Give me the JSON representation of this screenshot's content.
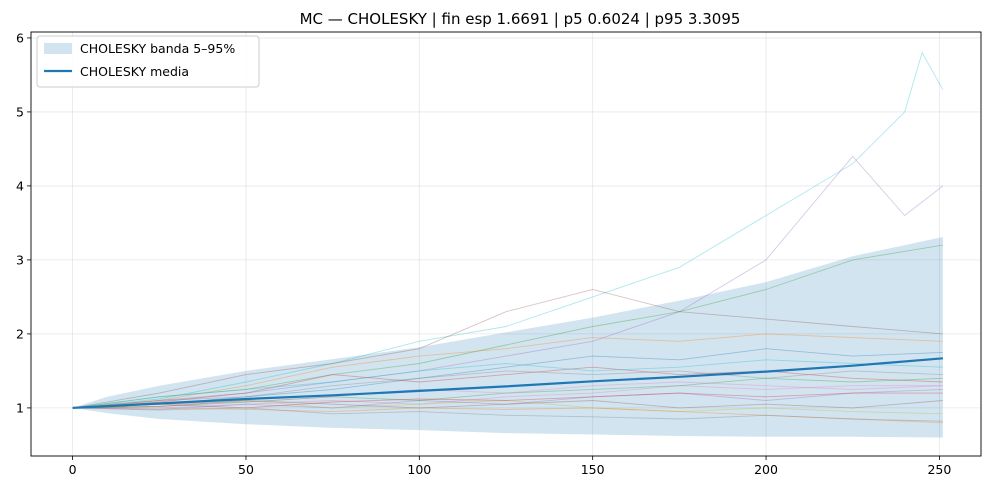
{
  "chart_data": {
    "type": "line",
    "title": "MC — CHOLESKY | fin esp 1.6691 | p5 0.6024 | p95 3.3095",
    "xlabel": "",
    "ylabel": "",
    "xlim": [
      -12,
      262
    ],
    "ylim": [
      0.35,
      6.08
    ],
    "xticks": [
      0,
      50,
      100,
      150,
      200,
      250
    ],
    "yticks": [
      1,
      2,
      3,
      4,
      5,
      6
    ],
    "grid": true,
    "legend_position": "top-left",
    "band": {
      "name": "CHOLESKY banda 5–95%",
      "color": "#1f77b4",
      "x": [
        0,
        10,
        25,
        50,
        75,
        100,
        125,
        150,
        175,
        200,
        225,
        251
      ],
      "low": [
        1.0,
        0.93,
        0.85,
        0.78,
        0.73,
        0.7,
        0.66,
        0.64,
        0.62,
        0.61,
        0.61,
        0.6
      ],
      "high": [
        1.0,
        1.15,
        1.3,
        1.5,
        1.66,
        1.82,
        2.02,
        2.22,
        2.45,
        2.7,
        3.05,
        3.31
      ]
    },
    "mean": {
      "name": "CHOLESKY media",
      "color": "#1f77b4",
      "x": [
        0,
        25,
        50,
        75,
        100,
        125,
        150,
        175,
        200,
        225,
        251
      ],
      "y": [
        1.0,
        1.06,
        1.12,
        1.17,
        1.23,
        1.29,
        1.36,
        1.42,
        1.49,
        1.57,
        1.67
      ]
    },
    "paths": [
      {
        "color": "#17becf",
        "x": [
          0,
          25,
          50,
          75,
          100,
          125,
          150,
          175,
          200,
          225,
          240,
          245,
          251
        ],
        "y": [
          1.0,
          1.12,
          1.35,
          1.6,
          1.9,
          2.1,
          2.5,
          2.9,
          3.6,
          4.3,
          5.0,
          5.8,
          5.3
        ]
      },
      {
        "color": "#9467bd",
        "x": [
          0,
          25,
          50,
          75,
          100,
          125,
          150,
          175,
          200,
          225,
          240,
          251
        ],
        "y": [
          1.0,
          1.1,
          1.2,
          1.35,
          1.5,
          1.7,
          1.9,
          2.3,
          3.0,
          4.4,
          3.6,
          4.0
        ]
      },
      {
        "color": "#2ca02c",
        "x": [
          0,
          25,
          50,
          75,
          100,
          125,
          150,
          175,
          200,
          225,
          251
        ],
        "y": [
          1.0,
          1.15,
          1.25,
          1.45,
          1.6,
          1.85,
          2.1,
          2.3,
          2.6,
          3.0,
          3.2
        ]
      },
      {
        "color": "#8c564b",
        "x": [
          0,
          25,
          50,
          75,
          100,
          125,
          150,
          175,
          200,
          225,
          251
        ],
        "y": [
          1.0,
          1.2,
          1.45,
          1.6,
          1.8,
          2.3,
          2.6,
          2.3,
          2.2,
          2.1,
          2.0
        ]
      },
      {
        "color": "#ff7f0e",
        "x": [
          0,
          25,
          50,
          75,
          100,
          125,
          150,
          175,
          200,
          225,
          251
        ],
        "y": [
          1.0,
          1.1,
          1.3,
          1.55,
          1.7,
          1.8,
          1.95,
          1.9,
          2.0,
          1.95,
          1.9
        ]
      },
      {
        "color": "#1f77b4",
        "x": [
          0,
          25,
          50,
          75,
          100,
          125,
          150,
          175,
          200,
          225,
          251
        ],
        "y": [
          1.0,
          1.05,
          1.15,
          1.25,
          1.4,
          1.55,
          1.7,
          1.65,
          1.8,
          1.7,
          1.75
        ]
      },
      {
        "color": "#d62728",
        "x": [
          0,
          25,
          50,
          75,
          100,
          125,
          150,
          175,
          200,
          225,
          251
        ],
        "y": [
          1.0,
          1.08,
          1.2,
          1.45,
          1.35,
          1.45,
          1.55,
          1.45,
          1.5,
          1.4,
          1.35
        ]
      },
      {
        "color": "#e377c2",
        "x": [
          0,
          25,
          50,
          75,
          100,
          125,
          150,
          175,
          200,
          225,
          251
        ],
        "y": [
          1.0,
          1.0,
          1.05,
          1.1,
          1.05,
          1.15,
          1.2,
          1.3,
          1.25,
          1.3,
          1.3
        ]
      },
      {
        "color": "#7f7f7f",
        "x": [
          0,
          25,
          50,
          75,
          100,
          125,
          150,
          175,
          200,
          225,
          251
        ],
        "y": [
          1.0,
          1.1,
          1.15,
          1.3,
          1.4,
          1.5,
          1.45,
          1.5,
          1.4,
          1.5,
          1.45
        ]
      },
      {
        "color": "#bcbd22",
        "x": [
          0,
          25,
          50,
          75,
          100,
          125,
          150,
          175,
          200,
          225,
          251
        ],
        "y": [
          1.0,
          1.05,
          1.1,
          1.0,
          1.05,
          1.1,
          1.0,
          0.95,
          1.0,
          0.95,
          0.92
        ]
      },
      {
        "color": "#17becf",
        "x": [
          0,
          25,
          50,
          75,
          100,
          125,
          150,
          175,
          200,
          225,
          251
        ],
        "y": [
          1.0,
          1.15,
          1.25,
          1.35,
          1.5,
          1.6,
          1.5,
          1.55,
          1.65,
          1.6,
          1.55
        ]
      },
      {
        "color": "#9467bd",
        "x": [
          0,
          25,
          50,
          75,
          100,
          125,
          150,
          175,
          200,
          225,
          251
        ],
        "y": [
          1.0,
          0.98,
          1.05,
          1.0,
          1.1,
          1.05,
          1.15,
          1.2,
          1.1,
          1.2,
          1.25
        ]
      },
      {
        "color": "#2ca02c",
        "x": [
          0,
          25,
          50,
          75,
          100,
          125,
          150,
          175,
          200,
          225,
          251
        ],
        "y": [
          1.0,
          1.02,
          1.08,
          1.15,
          1.1,
          1.2,
          1.25,
          1.3,
          1.4,
          1.35,
          1.4
        ]
      },
      {
        "color": "#ff7f0e",
        "x": [
          0,
          25,
          50,
          75,
          100,
          125,
          150,
          175,
          200,
          225,
          251
        ],
        "y": [
          1.0,
          1.0,
          0.98,
          0.95,
          1.0,
          0.98,
          1.0,
          0.95,
          0.9,
          0.85,
          0.8
        ]
      },
      {
        "color": "#d62728",
        "x": [
          0,
          25,
          50,
          75,
          100,
          125,
          150,
          175,
          200,
          225,
          251
        ],
        "y": [
          1.0,
          1.05,
          1.0,
          1.08,
          1.12,
          1.1,
          1.15,
          1.2,
          1.15,
          1.2,
          1.2
        ]
      },
      {
        "color": "#8c564b",
        "x": [
          0,
          25,
          50,
          75,
          100,
          125,
          150,
          175,
          200,
          225,
          251
        ],
        "y": [
          1.0,
          1.02,
          1.1,
          1.05,
          1.0,
          1.05,
          1.1,
          1.0,
          1.05,
          1.0,
          1.1
        ]
      },
      {
        "color": "#e377c2",
        "x": [
          0,
          25,
          50,
          75,
          100,
          125,
          150,
          175,
          200,
          225,
          251
        ],
        "y": [
          1.0,
          1.05,
          1.08,
          1.15,
          1.25,
          1.2,
          1.3,
          1.35,
          1.3,
          1.25,
          1.3
        ]
      },
      {
        "color": "#7f7f7f",
        "x": [
          0,
          25,
          50,
          75,
          100,
          125,
          150,
          175,
          200,
          225,
          251
        ],
        "y": [
          1.0,
          0.97,
          1.0,
          0.92,
          0.95,
          0.9,
          0.88,
          0.85,
          0.9,
          0.85,
          0.82
        ]
      }
    ]
  }
}
